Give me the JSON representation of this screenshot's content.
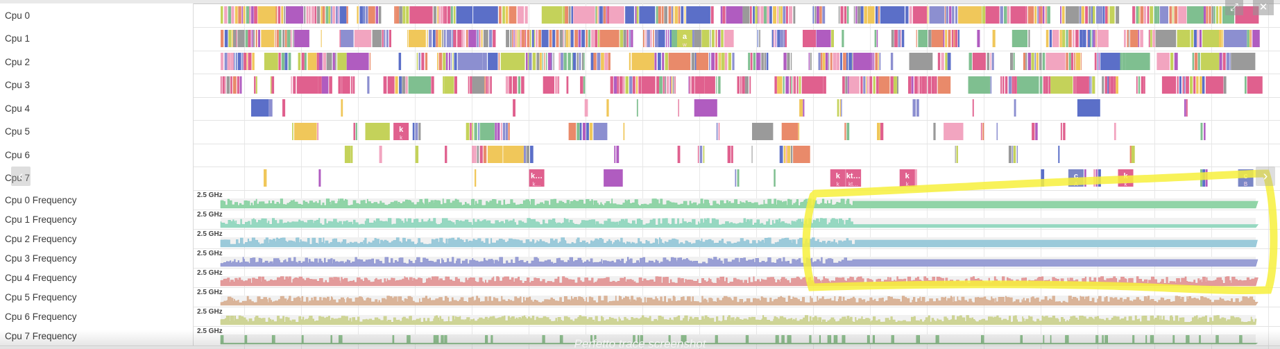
{
  "cpu_tracks": [
    {
      "label": "Cpu 0"
    },
    {
      "label": "Cpu 1",
      "slice_labels": [
        {
          "text": "a",
          "sub": "w",
          "at": 0.445
        }
      ]
    },
    {
      "label": "Cpu 2"
    },
    {
      "label": "Cpu 3"
    },
    {
      "label": "Cpu 4"
    },
    {
      "label": "Cpu 5",
      "slice_labels": [
        {
          "text": "k",
          "sub": "k",
          "at": 0.171
        }
      ]
    },
    {
      "label": "Cpu 6"
    },
    {
      "label": "Cpu 7",
      "slice_labels": [
        {
          "text": "k…",
          "sub": "k…",
          "at": 0.302
        },
        {
          "text": "k",
          "sub": "k",
          "at": 0.593
        },
        {
          "text": "kt…",
          "sub": "kt…",
          "at": 0.608
        },
        {
          "text": "k",
          "sub": "k",
          "at": 0.66
        },
        {
          "text": "c",
          "sub": "A",
          "at": 0.823
        },
        {
          "text": "k",
          "sub": "k",
          "at": 0.871
        },
        {
          "text": "c",
          "sub": "B",
          "at": 0.987
        }
      ]
    }
  ],
  "freq_tracks": [
    {
      "label": "Cpu 0 Frequency",
      "max": "2.5 GHz",
      "color": "#7fcf9a"
    },
    {
      "label": "Cpu 1 Frequency",
      "max": "2.5 GHz",
      "color": "#86d3b8"
    },
    {
      "label": "Cpu 2 Frequency",
      "max": "2.5 GHz",
      "color": "#8cc3d6"
    },
    {
      "label": "Cpu 3 Frequency",
      "max": "2.5 GHz",
      "color": "#8990d0"
    },
    {
      "label": "Cpu 4 Frequency",
      "max": "2.5 GHz",
      "color": "#e08c8c"
    },
    {
      "label": "Cpu 5 Frequency",
      "max": "2.5 GHz",
      "color": "#d6a98a"
    },
    {
      "label": "Cpu 6 Frequency",
      "max": "2.5 GHz",
      "color": "#c8cf86"
    },
    {
      "label": "Cpu 7 Frequency",
      "max": "2.5 GHz",
      "color": "#7fb67f"
    }
  ],
  "palette": [
    "#e0608e",
    "#8c8fd0",
    "#f0c75a",
    "#b05cc0",
    "#e98a6a",
    "#7fbf90",
    "#c4d25a",
    "#5b6fc8",
    "#f2a5c0",
    "#9a9a9a"
  ],
  "caption": "Perfetto trace screenshot",
  "nav": {
    "left": "‹",
    "right": "›"
  },
  "corner": {
    "expand": "⤢",
    "close": "✕"
  },
  "annotation_color": "#f7f03c"
}
